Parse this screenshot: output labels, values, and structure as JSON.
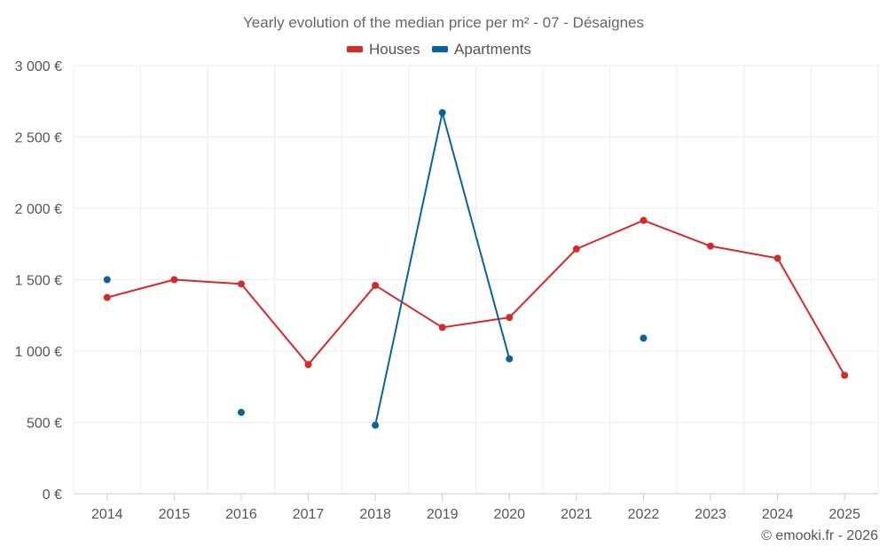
{
  "chart_data": {
    "type": "line",
    "title": "Yearly evolution of the median price per m² - 07 - Désaignes",
    "categories": [
      "2014",
      "2015",
      "2016",
      "2017",
      "2018",
      "2019",
      "2020",
      "2021",
      "2022",
      "2023",
      "2024",
      "2025"
    ],
    "y_tick_labels": [
      "0 €",
      "500 €",
      "1 000 €",
      "1 500 €",
      "2 000 €",
      "2 500 €",
      "3 000 €"
    ],
    "ylim": [
      0,
      3000
    ],
    "y_tick_step": 500,
    "grid": true,
    "legend_position": "top-center",
    "series": [
      {
        "name": "Houses",
        "color": "#d42a2a",
        "values": [
          1375,
          1500,
          1470,
          905,
          1460,
          1165,
          1235,
          1715,
          1915,
          1735,
          1650,
          830
        ]
      },
      {
        "name": "Apartments",
        "color": "#0a6399",
        "values": [
          1500,
          null,
          570,
          null,
          480,
          2670,
          945,
          null,
          1090,
          null,
          null,
          null
        ]
      }
    ],
    "credit": "© emooki.fr - 2026"
  }
}
